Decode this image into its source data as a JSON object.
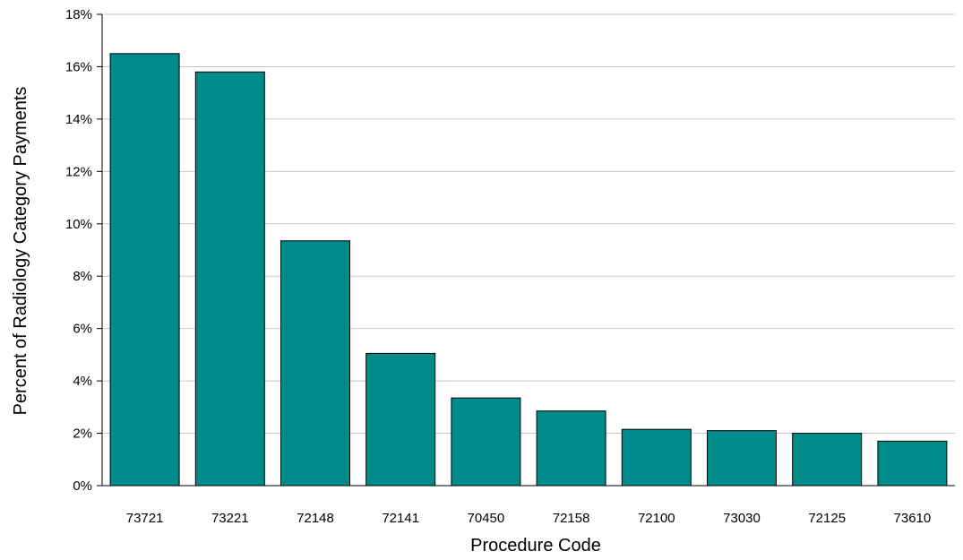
{
  "chart_data": {
    "type": "bar",
    "title": "",
    "xlabel": "Procedure Code",
    "ylabel": "Percent of Radiology Category Payments",
    "categories": [
      "73721",
      "73221",
      "72148",
      "72141",
      "70450",
      "72158",
      "72100",
      "73030",
      "72125",
      "73610"
    ],
    "values": [
      16.5,
      15.8,
      9.35,
      5.05,
      3.35,
      2.85,
      2.15,
      2.1,
      2.0,
      1.7
    ],
    "ylim": [
      0,
      18
    ],
    "yticks": [
      0,
      2,
      4,
      6,
      8,
      10,
      12,
      14,
      16,
      18
    ],
    "ytick_labels": [
      "0%",
      "2%",
      "4%",
      "6%",
      "8%",
      "10%",
      "12%",
      "14%",
      "16%",
      "18%"
    ],
    "grid": "horizontal",
    "legend": "none",
    "colors": {
      "bar": "#008B8B",
      "bar_edge": "#000000",
      "grid": "#C8C8C8",
      "axis": "#000000"
    }
  }
}
